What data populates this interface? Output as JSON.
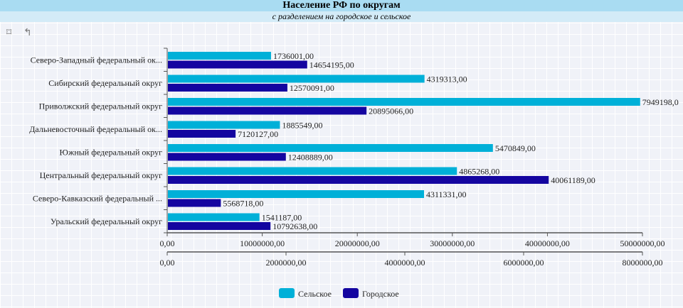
{
  "title": "Население РФ по округам",
  "subtitle": "с разделением на городское и сельское",
  "toolbar": {
    "icons": [
      "crop-icon",
      "undo-crop-icon"
    ]
  },
  "chart_data": {
    "type": "bar",
    "orientation": "horizontal",
    "title": "Население РФ по округам",
    "subtitle": "с разделением на городское и сельское",
    "categories": [
      "Северо-Западный федеральный ок...",
      "Сибирский федеральный округ",
      "Приволжский федеральный округ",
      "Дальневосточный федеральный ок...",
      "Южный федеральный округ",
      "Центральный федеральный округ",
      "Северо-Кавказский федеральный ...",
      "Уральский федеральный округ"
    ],
    "series": [
      {
        "name": "Сельское",
        "color": "#00b0d8",
        "axis": "bottom",
        "values": [
          1736001,
          4319313,
          7949198,
          1885549,
          5470849,
          4865268,
          4311331,
          1541187
        ],
        "labels": [
          "1736001,00",
          "4319313,00",
          "7949198,0",
          "1885549,00",
          "5470849,00",
          "4865268,00",
          "4311331,00",
          "1541187,00"
        ]
      },
      {
        "name": "Городское",
        "color": "#1405a0",
        "axis": "top",
        "values": [
          14654195,
          12570091,
          20895066,
          7120127,
          12408889,
          40061189,
          5568718,
          10792638
        ],
        "labels": [
          "14654195,00",
          "12570091,00",
          "20895066,00",
          "7120127,00",
          "12408889,00",
          "40061189,00",
          "5568718,00",
          "10792638,00"
        ]
      }
    ],
    "axes": [
      {
        "range": [
          0,
          50000000
        ],
        "ticks": [
          "0,00",
          "10000000,00",
          "20000000,00",
          "30000000,00",
          "40000000,00",
          "50000000,00"
        ]
      },
      {
        "range": [
          0,
          8000000
        ],
        "ticks": [
          "0,00",
          "2000000,00",
          "4000000,00",
          "6000000,00",
          "8000000,00"
        ]
      }
    ],
    "legend": "bottom-center",
    "grid": true
  }
}
